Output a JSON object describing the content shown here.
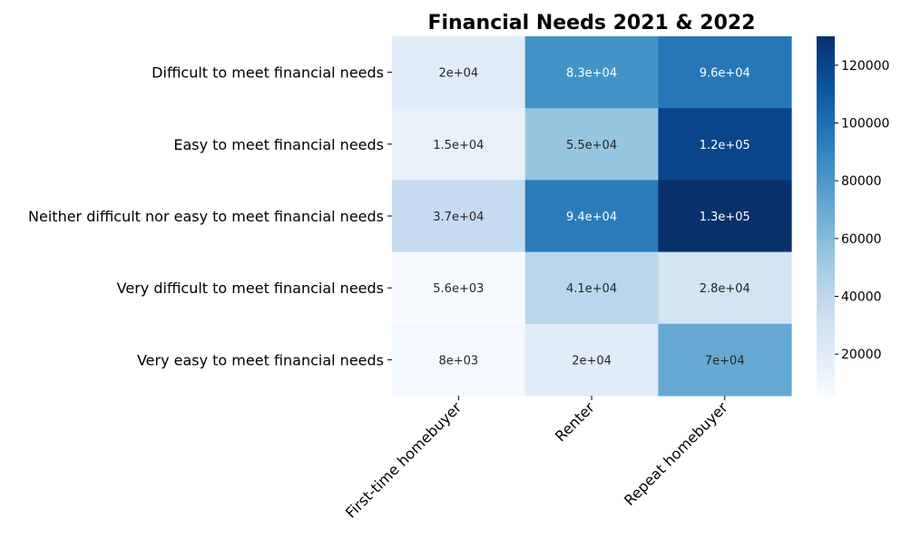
{
  "chart_data": {
    "type": "heatmap",
    "title": "Financial Needs 2021 & 2022",
    "rows": [
      "Difficult to meet financial needs",
      "Easy to meet financial needs",
      "Neither difficult nor easy to meet financial needs",
      "Very difficult to meet financial needs",
      "Very easy to meet financial needs"
    ],
    "columns": [
      "First-time homebuyer",
      "Renter",
      "Repeat homebuyer"
    ],
    "values": [
      [
        20000,
        83000,
        96000
      ],
      [
        15000,
        55000,
        120000
      ],
      [
        37000,
        94000,
        130000
      ],
      [
        5600,
        41000,
        28000
      ],
      [
        8000,
        20000,
        70000
      ]
    ],
    "annotations": [
      [
        "2e+04",
        "8.3e+04",
        "9.6e+04"
      ],
      [
        "1.5e+04",
        "5.5e+04",
        "1.2e+05"
      ],
      [
        "3.7e+04",
        "9.4e+04",
        "1.3e+05"
      ],
      [
        "5.6e+03",
        "4.1e+04",
        "2.8e+04"
      ],
      [
        "8e+03",
        "2e+04",
        "7e+04"
      ]
    ],
    "colorbar": {
      "colormap": "Blues",
      "vmin": 5600,
      "vmax": 130000,
      "ticks": [
        20000,
        40000,
        60000,
        80000,
        100000,
        120000
      ],
      "tick_labels": [
        "20000",
        "40000",
        "60000",
        "80000",
        "100000",
        "120000"
      ]
    },
    "xlabel": "",
    "ylabel": ""
  }
}
